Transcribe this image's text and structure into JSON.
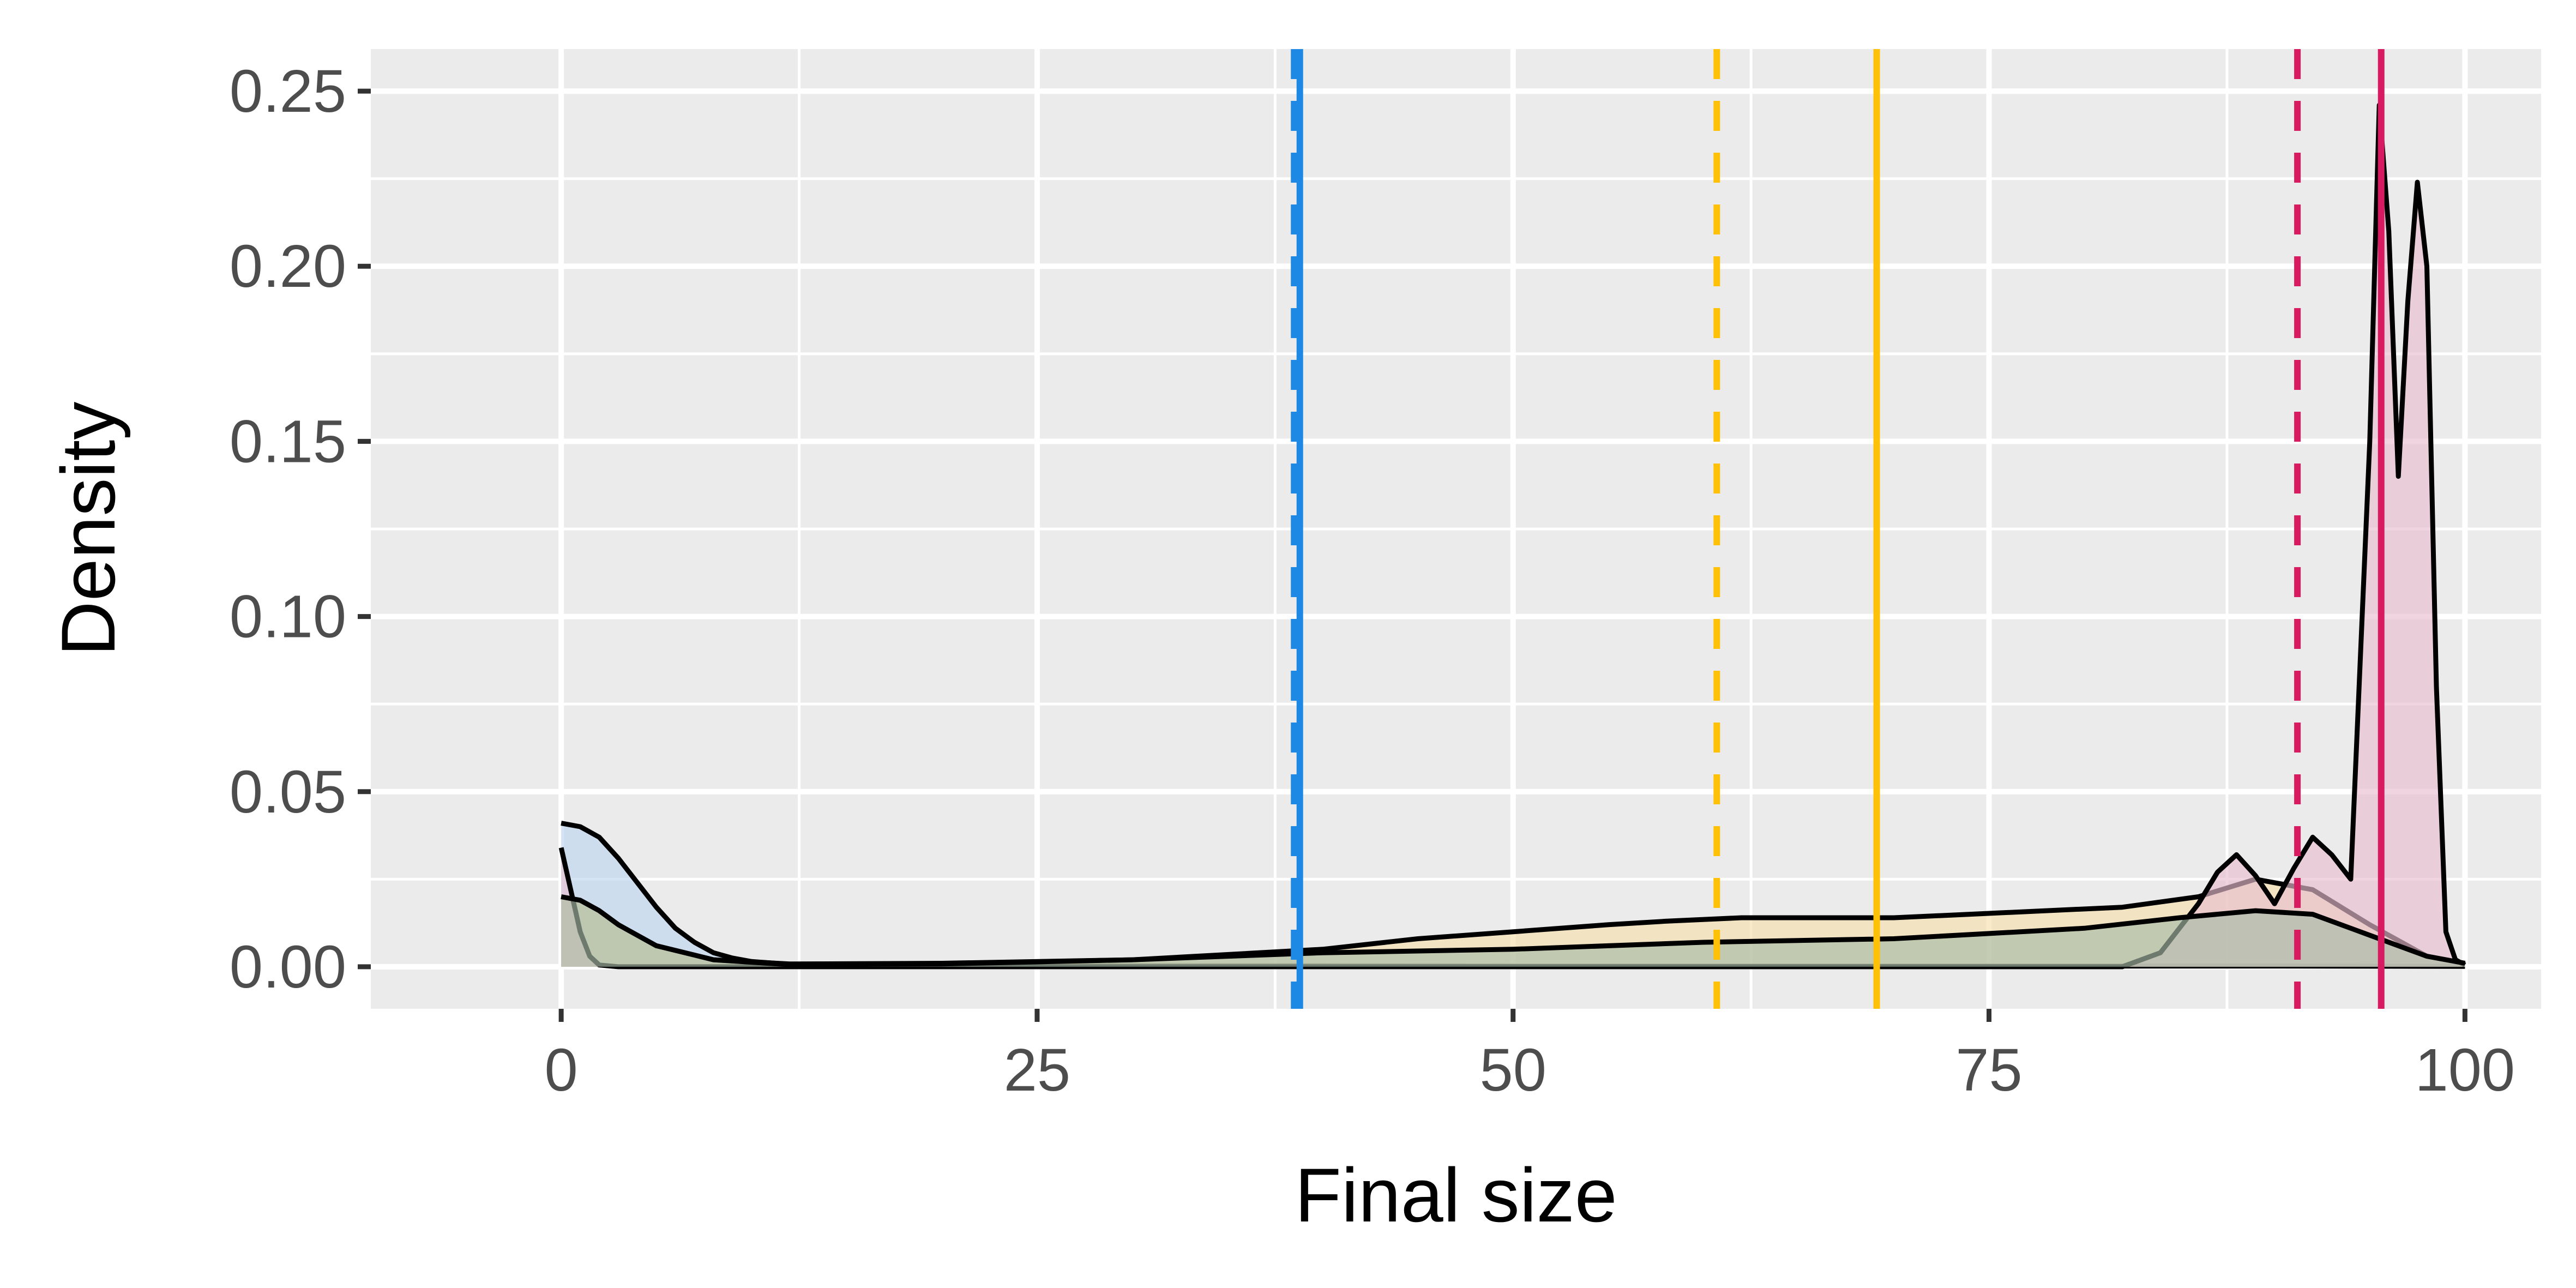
{
  "chart_data": {
    "type": "area",
    "title": "",
    "xlabel": "Final size",
    "ylabel": "Density",
    "xlim": [
      -10,
      104
    ],
    "ylim": [
      -0.012,
      0.262
    ],
    "x_ticks": [
      "0",
      "25",
      "50",
      "75",
      "100"
    ],
    "y_ticks": [
      "0.00",
      "0.05",
      "0.10",
      "0.15",
      "0.20",
      "0.25"
    ],
    "grid": true,
    "legend": "none",
    "colors": {
      "panel": "#EBEBEB",
      "grid": "#FFFFFF",
      "blue": "#1E88E5",
      "yellow": "#FFC107",
      "magenta": "#D81B60",
      "outline": "#000000"
    },
    "series": [
      {
        "color": "#1E88E5",
        "fill": "#BDD5EE",
        "x": [
          0,
          1,
          2,
          3,
          4,
          5,
          6,
          7,
          8,
          9,
          10,
          12,
          14,
          20,
          30,
          40,
          50,
          60,
          70,
          80,
          90,
          100
        ],
        "y": [
          0.041,
          0.04,
          0.037,
          0.031,
          0.024,
          0.017,
          0.011,
          0.007,
          0.004,
          0.0025,
          0.0015,
          0.0007,
          0.0005,
          0.0004,
          0.0003,
          0.0003,
          0.0002,
          0.0002,
          0.0002,
          0.0002,
          0.0002,
          0.0001
        ]
      },
      {
        "color": "#FFC107",
        "fill": "#F6DEAC",
        "x": [
          0,
          1,
          2,
          3,
          5,
          8,
          12,
          20,
          30,
          40,
          45,
          50,
          55,
          58,
          62,
          66,
          70,
          74,
          78,
          82,
          86,
          89,
          92,
          95,
          98,
          100
        ],
        "y": [
          0.02,
          0.019,
          0.016,
          0.012,
          0.006,
          0.002,
          0.0008,
          0.001,
          0.002,
          0.005,
          0.008,
          0.01,
          0.012,
          0.013,
          0.014,
          0.014,
          0.014,
          0.015,
          0.016,
          0.017,
          0.02,
          0.025,
          0.022,
          0.012,
          0.003,
          0.001
        ]
      },
      {
        "color": "#D81B60",
        "fill": "#E8BED0",
        "x": [
          0,
          0.5,
          1,
          1.5,
          2,
          3,
          10,
          40,
          70,
          82,
          84,
          86,
          87,
          88,
          89,
          90,
          91,
          92,
          93,
          94,
          95,
          95.5,
          96,
          96.5,
          97,
          97.5,
          98,
          98.5,
          99,
          99.5,
          100
        ],
        "y": [
          0.034,
          0.022,
          0.01,
          0.003,
          0.0005,
          0.0,
          0.0,
          0.0,
          0.0,
          0.0,
          0.004,
          0.018,
          0.027,
          0.032,
          0.026,
          0.018,
          0.028,
          0.037,
          0.032,
          0.025,
          0.15,
          0.246,
          0.21,
          0.14,
          0.19,
          0.224,
          0.2,
          0.08,
          0.01,
          0.002,
          0.0005
        ]
      },
      {
        "color": "#000000",
        "fill": "#A8BCA8",
        "x": [
          0,
          1,
          2,
          3,
          5,
          8,
          12,
          20,
          30,
          40,
          50,
          60,
          70,
          80,
          85,
          89,
          92,
          95,
          98,
          100
        ],
        "y": [
          0.02,
          0.019,
          0.016,
          0.012,
          0.006,
          0.002,
          0.0006,
          0.0008,
          0.002,
          0.004,
          0.005,
          0.007,
          0.008,
          0.011,
          0.014,
          0.016,
          0.015,
          0.009,
          0.003,
          0.001
        ]
      }
    ],
    "vlines": [
      {
        "x": 38.5,
        "color": "#1E88E5",
        "style": "dashed"
      },
      {
        "x": 38.8,
        "color": "#1E88E5",
        "style": "solid"
      },
      {
        "x": 60.7,
        "color": "#FFC107",
        "style": "dashed"
      },
      {
        "x": 69.1,
        "color": "#FFC107",
        "style": "solid"
      },
      {
        "x": 91.2,
        "color": "#D81B60",
        "style": "dashed"
      },
      {
        "x": 95.6,
        "color": "#D81B60",
        "style": "solid"
      }
    ]
  }
}
